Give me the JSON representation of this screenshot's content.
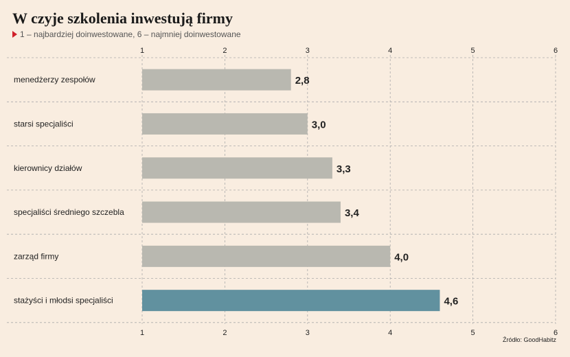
{
  "title": "W czyje szkolenia inwestują firmy",
  "subtitle": "1 – najbardziej doinwestowane, 6 – najmniej doinwestowane",
  "subtitle_icon": "red-triangle-bullet-icon",
  "source": "Źródło: GoodHabitz",
  "colors": {
    "background": "#f9ede0",
    "bar_default": "#b9b8b0",
    "bar_highlight": "#61919f",
    "grid": "#aaaaaa"
  },
  "chart_data": {
    "type": "bar",
    "orientation": "horizontal",
    "categories": [
      "menedżerzy zespołów",
      "starsi specjaliści",
      "kierownicy działów",
      "specjaliści średniego szczebla",
      "zarząd firmy",
      "stażyści i młodsi specjaliści"
    ],
    "values": [
      2.8,
      3.0,
      3.3,
      3.4,
      4.0,
      4.6
    ],
    "value_labels": [
      "2,8",
      "3,0",
      "3,3",
      "3,4",
      "4,0",
      "4,6"
    ],
    "highlight_index": 5,
    "xlim": [
      1,
      6
    ],
    "ticks": [
      "1",
      "2",
      "3",
      "4",
      "5",
      "6"
    ],
    "tick_axis": "top and bottom",
    "grid": "dashed"
  }
}
